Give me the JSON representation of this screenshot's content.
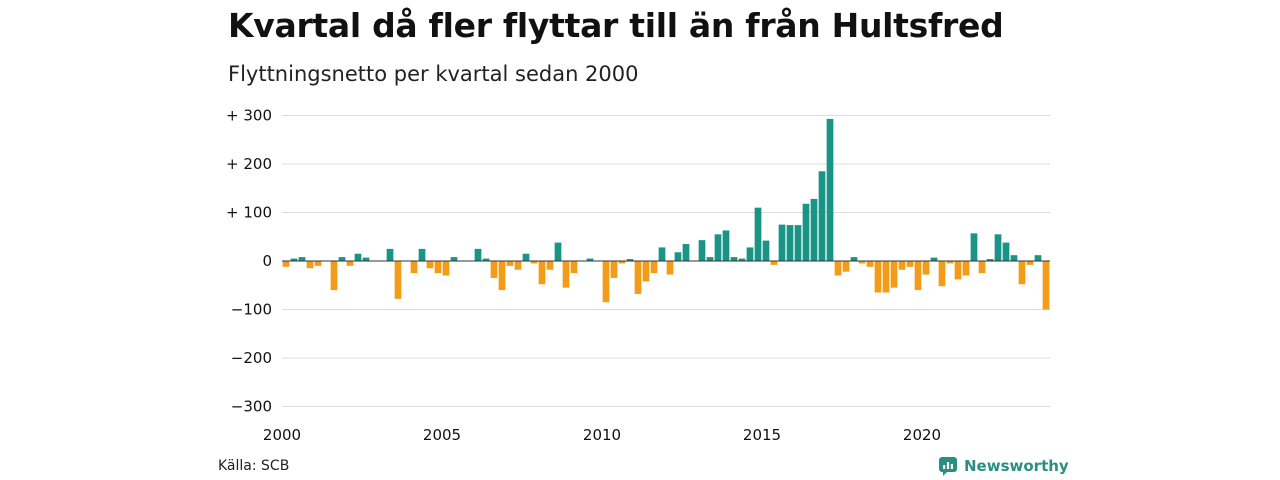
{
  "title": "Kvartal då fler flyttar till än från Hultsfred",
  "subtitle": "Flyttningsnetto per kvartal sedan 2000",
  "source": "Källa: SCB",
  "brand": "Newsworthy",
  "colors": {
    "positive": "#1a9486",
    "negative": "#f39c19",
    "grid": "#dcdcdc",
    "zero": "#333333",
    "brand": "#2a8f82"
  },
  "chart_data": {
    "type": "bar",
    "title": "Kvartal då fler flyttar till än från Hultsfred",
    "subtitle": "Flyttningsnetto per kvartal sedan 2000",
    "xlabel": "",
    "ylabel": "",
    "ylim": [
      -300,
      300
    ],
    "y_ticks": [
      {
        "value": 300,
        "label": "+ 300"
      },
      {
        "value": 200,
        "label": "+ 200"
      },
      {
        "value": 100,
        "label": "+ 100"
      },
      {
        "value": 0,
        "label": "0"
      },
      {
        "value": -100,
        "label": "−100"
      },
      {
        "value": -200,
        "label": "−200"
      },
      {
        "value": -300,
        "label": "−300"
      }
    ],
    "x_ticks": [
      {
        "year": 2000,
        "label": "2000"
      },
      {
        "year": 2005,
        "label": "2005"
      },
      {
        "year": 2010,
        "label": "2010"
      },
      {
        "year": 2015,
        "label": "2015"
      },
      {
        "year": 2020,
        "label": "2020"
      }
    ],
    "grid": true,
    "quarters_start": "2000 Q1",
    "values": [
      -12,
      5,
      8,
      -15,
      -10,
      0,
      -60,
      8,
      -10,
      15,
      7,
      0,
      0,
      25,
      -78,
      0,
      -25,
      25,
      -15,
      -25,
      -30,
      8,
      0,
      0,
      25,
      5,
      -35,
      -60,
      -10,
      -18,
      15,
      -5,
      -48,
      -18,
      38,
      -55,
      -25,
      0,
      5,
      0,
      -85,
      -35,
      -5,
      4,
      -68,
      -42,
      -25,
      28,
      -28,
      18,
      35,
      0,
      43,
      8,
      55,
      63,
      8,
      5,
      28,
      110,
      42,
      -8,
      75,
      74,
      74,
      118,
      128,
      185,
      293,
      -30,
      -22,
      8,
      -5,
      -12,
      -65,
      -65,
      -55,
      -18,
      -12,
      -60,
      -28,
      7,
      -52,
      -5,
      -38,
      -30,
      57,
      -25,
      4,
      55,
      38,
      12,
      -48,
      -8,
      12,
      -100
    ]
  }
}
